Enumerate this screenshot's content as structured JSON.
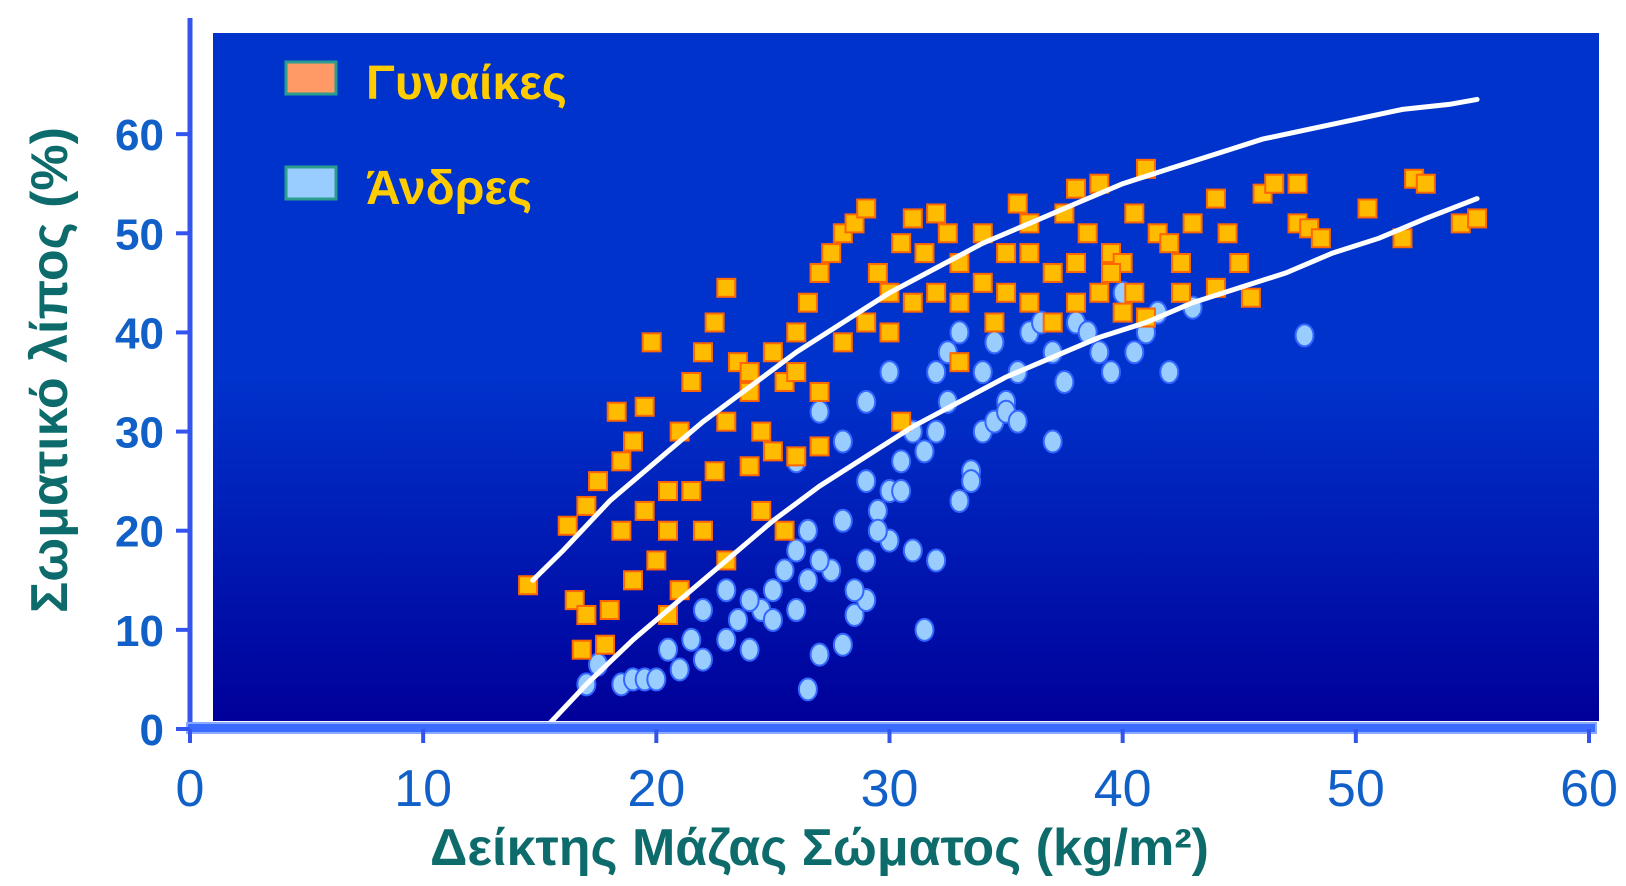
{
  "colors": {
    "plot_bg_top": "#0033cc",
    "plot_bg_bottom": "#000099",
    "women_fill": "#ffbb00",
    "women_edge": "#ff6600",
    "men_fill": "#99ccff",
    "men_edge": "#3366ff",
    "fit_line": "#ffffff",
    "axis": "#3355ee",
    "tick_label_y": "#1060c8",
    "tick_label_x": "#1060c8",
    "axis_title": "#0d6b6b",
    "legend_text": "#ffcc00"
  },
  "chart_data": {
    "type": "scatter",
    "xlabel": "Δείκτης Μάζας Σώματος (kg/m²)",
    "ylabel": "Σωματικό λίπος (%)",
    "xlim": [
      0,
      60
    ],
    "ylim": [
      0,
      70
    ],
    "x_ticks": [
      0,
      10,
      20,
      30,
      40,
      50,
      60
    ],
    "y_ticks": [
      0,
      10,
      20,
      30,
      40,
      50,
      60
    ],
    "grid": false,
    "legend_position": "top-left",
    "series": [
      {
        "name": "Γυναίκες",
        "marker": "square",
        "points": [
          [
            14.5,
            14.5
          ],
          [
            16.5,
            13
          ],
          [
            17,
            11.5
          ],
          [
            16.8,
            8
          ],
          [
            17.8,
            8.5
          ],
          [
            18,
            12
          ],
          [
            16.2,
            20.5
          ],
          [
            17,
            22.5
          ],
          [
            17.5,
            25
          ],
          [
            18.5,
            27
          ],
          [
            19,
            29
          ],
          [
            18.3,
            32
          ],
          [
            19.5,
            32.5
          ],
          [
            19.8,
            39
          ],
          [
            20.5,
            24
          ],
          [
            21,
            30
          ],
          [
            21.5,
            35
          ],
          [
            22,
            38
          ],
          [
            22.5,
            41
          ],
          [
            23,
            44.5
          ],
          [
            23.5,
            37
          ],
          [
            24,
            34
          ],
          [
            24.5,
            30
          ],
          [
            25,
            28
          ],
          [
            25.5,
            35
          ],
          [
            26,
            40
          ],
          [
            26.5,
            43
          ],
          [
            27,
            46
          ],
          [
            27.5,
            48
          ],
          [
            28,
            50
          ],
          [
            28.5,
            51
          ],
          [
            29,
            52.5
          ],
          [
            29.5,
            46
          ],
          [
            30,
            44
          ],
          [
            30.5,
            49
          ],
          [
            31,
            51.5
          ],
          [
            31.5,
            48
          ],
          [
            32,
            52
          ],
          [
            32.5,
            50
          ],
          [
            33,
            47
          ],
          [
            34,
            50
          ],
          [
            35,
            48
          ],
          [
            35.5,
            53
          ],
          [
            36,
            51
          ],
          [
            37,
            46
          ],
          [
            37.5,
            52
          ],
          [
            38,
            54.5
          ],
          [
            38.5,
            50
          ],
          [
            39,
            55
          ],
          [
            39.5,
            48
          ],
          [
            40,
            47
          ],
          [
            40.5,
            52
          ],
          [
            41,
            56.5
          ],
          [
            41.5,
            50
          ],
          [
            42,
            49
          ],
          [
            42.5,
            47
          ],
          [
            43,
            51
          ],
          [
            44,
            53.5
          ],
          [
            44.5,
            50
          ],
          [
            45,
            47
          ],
          [
            45.5,
            43.5
          ],
          [
            46,
            54
          ],
          [
            46.5,
            55
          ],
          [
            47.5,
            51
          ],
          [
            48,
            50.5
          ],
          [
            48.5,
            49.5
          ],
          [
            47.5,
            55
          ],
          [
            50.5,
            52.5
          ],
          [
            52,
            49.5
          ],
          [
            52.5,
            55.5
          ],
          [
            53,
            55
          ],
          [
            54.5,
            51
          ],
          [
            55.2,
            51.5
          ],
          [
            20,
            17
          ],
          [
            21,
            14
          ],
          [
            20.5,
            11.5
          ],
          [
            19,
            15
          ],
          [
            22,
            20
          ],
          [
            23,
            17
          ],
          [
            24.5,
            22
          ],
          [
            25.5,
            20
          ],
          [
            24,
            26.5
          ],
          [
            26,
            27.5
          ],
          [
            27,
            28.5
          ],
          [
            30.5,
            31
          ],
          [
            33,
            37
          ],
          [
            34.5,
            41
          ],
          [
            36,
            43
          ],
          [
            37,
            41
          ],
          [
            38,
            43
          ],
          [
            39,
            44
          ],
          [
            40,
            42
          ],
          [
            41,
            41.5
          ],
          [
            42.5,
            44
          ],
          [
            44,
            44.5
          ],
          [
            18.5,
            20
          ],
          [
            19.5,
            22
          ],
          [
            20.5,
            20
          ],
          [
            21.5,
            24
          ],
          [
            22.5,
            26
          ],
          [
            23,
            31
          ],
          [
            24,
            36
          ],
          [
            25,
            38
          ],
          [
            26,
            36
          ],
          [
            27,
            34
          ],
          [
            28,
            39
          ],
          [
            29,
            41
          ],
          [
            30,
            40
          ],
          [
            31,
            43
          ],
          [
            32,
            44
          ],
          [
            33,
            43
          ],
          [
            34,
            45
          ],
          [
            35,
            44
          ],
          [
            36,
            48
          ],
          [
            38,
            47
          ],
          [
            39.5,
            46
          ],
          [
            40.5,
            44
          ]
        ]
      },
      {
        "name": "Άνδρες",
        "marker": "ellipse",
        "points": [
          [
            17,
            4.5
          ],
          [
            17.5,
            6.5
          ],
          [
            18.5,
            4.5
          ],
          [
            19,
            5
          ],
          [
            19.5,
            5
          ],
          [
            20,
            5
          ],
          [
            20.5,
            8
          ],
          [
            21,
            6
          ],
          [
            21.5,
            9
          ],
          [
            22,
            7
          ],
          [
            23,
            9
          ],
          [
            23.5,
            11
          ],
          [
            24,
            8
          ],
          [
            24.5,
            12
          ],
          [
            25,
            14
          ],
          [
            25.5,
            16
          ],
          [
            26,
            18
          ],
          [
            26.5,
            20
          ],
          [
            26.5,
            4
          ],
          [
            27,
            7.5
          ],
          [
            27.5,
            16
          ],
          [
            28,
            8.5
          ],
          [
            28.5,
            11.5
          ],
          [
            29,
            13
          ],
          [
            29.5,
            22
          ],
          [
            30,
            24
          ],
          [
            30.5,
            27
          ],
          [
            31,
            30
          ],
          [
            31.5,
            10
          ],
          [
            32,
            36
          ],
          [
            32.5,
            33
          ],
          [
            33,
            23
          ],
          [
            33.5,
            26
          ],
          [
            34,
            30
          ],
          [
            34.5,
            31
          ],
          [
            35,
            33
          ],
          [
            35.5,
            36
          ],
          [
            36,
            40
          ],
          [
            36.5,
            41
          ],
          [
            37,
            38
          ],
          [
            37.5,
            35
          ],
          [
            38,
            41
          ],
          [
            38.5,
            40
          ],
          [
            39,
            38
          ],
          [
            39.5,
            36
          ],
          [
            40,
            44
          ],
          [
            40.5,
            38
          ],
          [
            41,
            40
          ],
          [
            41.5,
            42
          ],
          [
            42,
            36
          ],
          [
            43,
            42.5
          ],
          [
            47.8,
            39.7
          ],
          [
            27,
            17
          ],
          [
            28,
            21
          ],
          [
            29,
            25
          ],
          [
            30,
            19
          ],
          [
            31,
            18
          ],
          [
            32,
            17
          ],
          [
            26,
            27
          ],
          [
            27,
            32
          ],
          [
            28,
            29
          ],
          [
            29,
            33
          ],
          [
            30,
            36
          ],
          [
            33.5,
            25
          ],
          [
            34,
            36
          ],
          [
            35,
            32
          ],
          [
            35.5,
            31
          ],
          [
            37,
            29
          ],
          [
            22,
            12
          ],
          [
            23,
            14
          ],
          [
            24,
            13
          ],
          [
            25,
            11
          ],
          [
            26,
            12
          ],
          [
            26.5,
            15
          ],
          [
            28.5,
            14
          ],
          [
            29,
            17
          ],
          [
            29.5,
            20
          ],
          [
            30.5,
            24
          ],
          [
            31.5,
            28
          ],
          [
            32,
            30
          ],
          [
            32.5,
            38
          ],
          [
            33,
            40
          ],
          [
            34.5,
            39
          ]
        ]
      }
    ],
    "fit_curves": [
      {
        "points": [
          [
            14.7,
            15
          ],
          [
            16,
            18
          ],
          [
            18,
            23
          ],
          [
            20,
            27
          ],
          [
            22,
            31
          ],
          [
            24,
            34.5
          ],
          [
            26,
            38
          ],
          [
            28,
            41
          ],
          [
            30,
            44
          ],
          [
            32,
            46.5
          ],
          [
            34,
            49
          ],
          [
            36,
            51
          ],
          [
            38,
            53
          ],
          [
            40,
            55
          ],
          [
            42,
            56.5
          ],
          [
            44,
            58
          ],
          [
            46,
            59.5
          ],
          [
            48,
            60.5
          ],
          [
            50,
            61.5
          ],
          [
            52,
            62.5
          ],
          [
            54,
            63
          ],
          [
            55.2,
            63.5
          ]
        ]
      },
      {
        "points": [
          [
            15.2,
            0
          ],
          [
            17,
            4.5
          ],
          [
            19,
            9
          ],
          [
            21,
            13
          ],
          [
            23,
            17
          ],
          [
            25,
            21
          ],
          [
            27,
            24.5
          ],
          [
            29,
            27.5
          ],
          [
            31,
            30.5
          ],
          [
            33,
            33
          ],
          [
            35,
            35.5
          ],
          [
            37,
            37.5
          ],
          [
            39,
            39.5
          ],
          [
            41,
            41
          ],
          [
            43,
            43
          ],
          [
            45,
            44.5
          ],
          [
            47,
            46
          ],
          [
            49,
            48
          ],
          [
            51,
            49.5
          ],
          [
            53,
            51.5
          ],
          [
            55.2,
            53.5
          ]
        ]
      }
    ]
  }
}
